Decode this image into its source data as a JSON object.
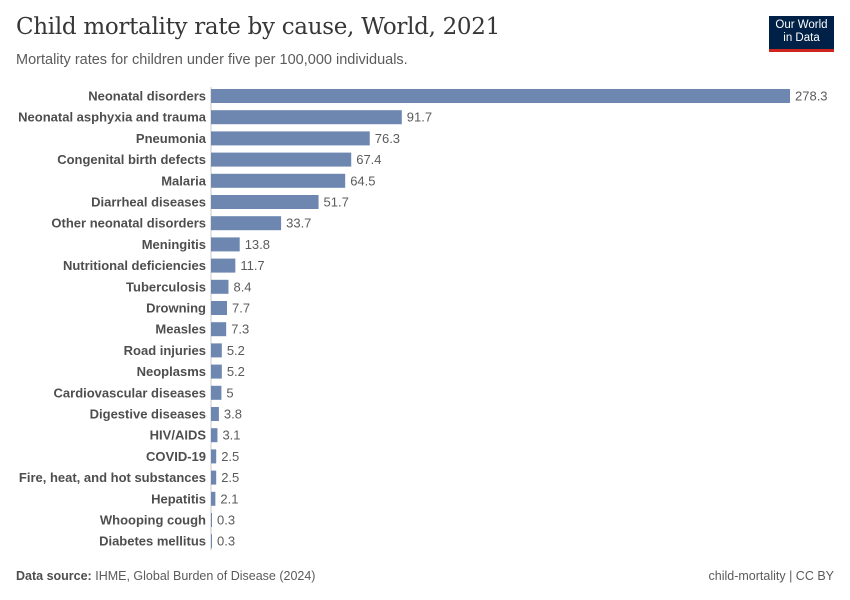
{
  "header": {
    "title": "Child mortality rate by cause, World, 2021",
    "subtitle": "Mortality rates for children under five per 100,000 individuals.",
    "logo": "Our World in Data",
    "logo_line1": "Our World",
    "logo_line2": "in Data"
  },
  "footer": {
    "source_label": "Data source:",
    "source": "IHME, Global Burden of Disease (2024)",
    "license": "child-mortality | CC BY"
  },
  "chart_data": {
    "type": "bar",
    "orientation": "horizontal",
    "title": "Child mortality rate by cause, World, 2021",
    "subtitle": "Mortality rates for children under five per 100,000 individuals.",
    "color": "#6d87b0",
    "xlim": [
      0,
      278.3
    ],
    "categories": [
      "Neonatal disorders",
      "Neonatal asphyxia and trauma",
      "Pneumonia",
      "Congenital birth defects",
      "Malaria",
      "Diarrheal diseases",
      "Other neonatal disorders",
      "Meningitis",
      "Nutritional deficiencies",
      "Tuberculosis",
      "Drowning",
      "Measles",
      "Road injuries",
      "Neoplasms",
      "Cardiovascular diseases",
      "Digestive diseases",
      "HIV/AIDS",
      "COVID-19",
      "Fire, heat, and hot substances",
      "Hepatitis",
      "Whooping cough",
      "Diabetes mellitus"
    ],
    "values": [
      278.3,
      91.7,
      76.3,
      67.4,
      64.5,
      51.7,
      33.7,
      13.8,
      11.7,
      8.4,
      7.7,
      7.3,
      5.2,
      5.2,
      5,
      3.8,
      3.1,
      2.5,
      2.5,
      2.1,
      0.3,
      0.3
    ]
  }
}
